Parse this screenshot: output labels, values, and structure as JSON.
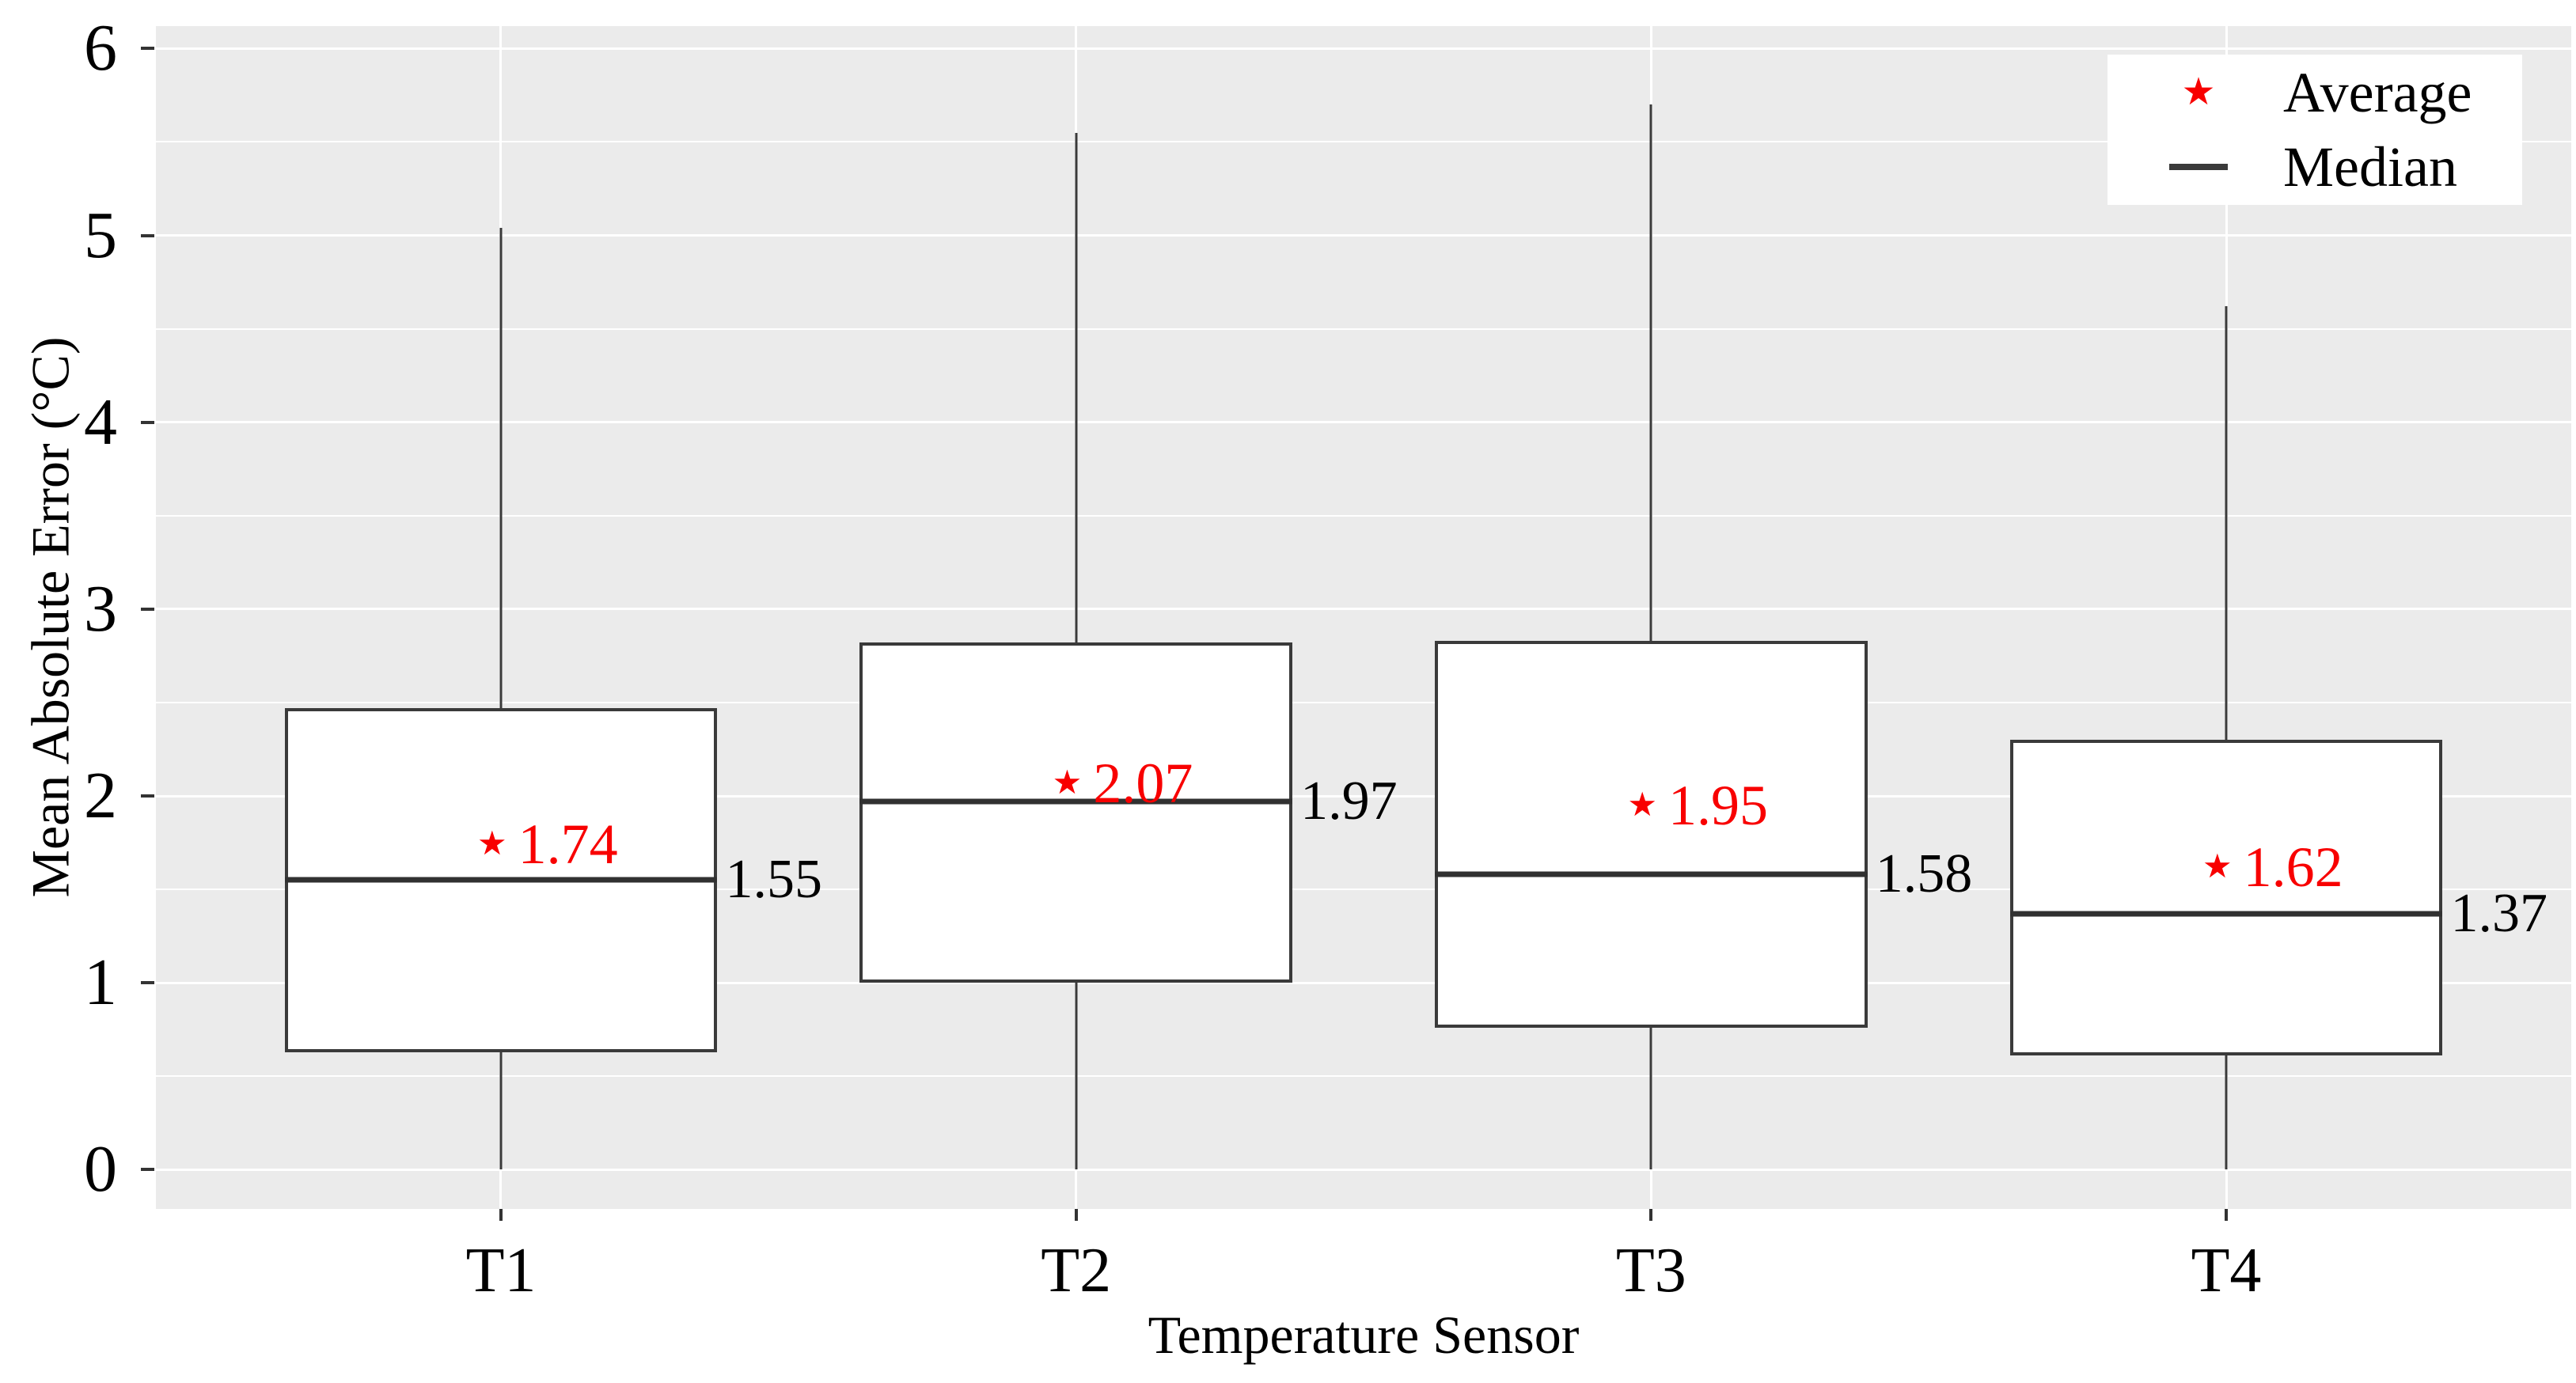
{
  "figure": {
    "y_axis": {
      "title": "Mean Absolute Error (°C)",
      "tick_labels": [
        "0",
        "1",
        "2",
        "3",
        "4",
        "5",
        "6"
      ],
      "tick_values": [
        0,
        1,
        2,
        3,
        4,
        5,
        6
      ],
      "minor_tick_values": [
        0.5,
        1.5,
        2.5,
        3.5,
        4.5,
        5.5
      ],
      "range_top": 6.12,
      "range_bottom": -0.21
    },
    "x_axis": {
      "title": "Temperature Sensor",
      "tick_labels": [
        "T1",
        "T2",
        "T3",
        "T4"
      ]
    },
    "legend": {
      "average_label": "Average",
      "median_label": "Median",
      "star_icon": "★"
    },
    "colors": {
      "panel_background": "#EBEBEB",
      "gridline": "#FFFFFF",
      "box_stroke": "#3A3A3A",
      "median_stroke": "#313131",
      "average_red": "#F80000",
      "text": "#000000",
      "legend_background": "#FFFFFF"
    }
  },
  "chart_data": {
    "type": "boxplot",
    "title": "",
    "xlabel": "Temperature Sensor",
    "ylabel": "Mean Absolute Error (°C)",
    "ylim": [
      0,
      6
    ],
    "grid": "on",
    "legend_position": "top-right",
    "legend_entries": [
      "Average",
      "Median"
    ],
    "categories": [
      "T1",
      "T2",
      "T3",
      "T4"
    ],
    "series": [
      {
        "category": "T1",
        "whisker_low": 0,
        "q1": 0.63,
        "median": 1.55,
        "q3": 2.47,
        "whisker_high": 5.04,
        "average": 1.74,
        "median_label": "1.55",
        "average_label": "1.74"
      },
      {
        "category": "T2",
        "whisker_low": 0,
        "q1": 1.0,
        "median": 1.97,
        "q3": 2.82,
        "whisker_high": 5.55,
        "average": 2.07,
        "median_label": "1.97",
        "average_label": "2.07"
      },
      {
        "category": "T3",
        "whisker_low": 0,
        "q1": 0.76,
        "median": 1.58,
        "q3": 2.83,
        "whisker_high": 5.7,
        "average": 1.95,
        "median_label": "1.58",
        "average_label": "1.95"
      },
      {
        "category": "T4",
        "whisker_low": 0,
        "q1": 0.61,
        "median": 1.37,
        "q3": 2.3,
        "whisker_high": 4.62,
        "average": 1.62,
        "median_label": "1.37",
        "average_label": "1.62"
      }
    ]
  }
}
